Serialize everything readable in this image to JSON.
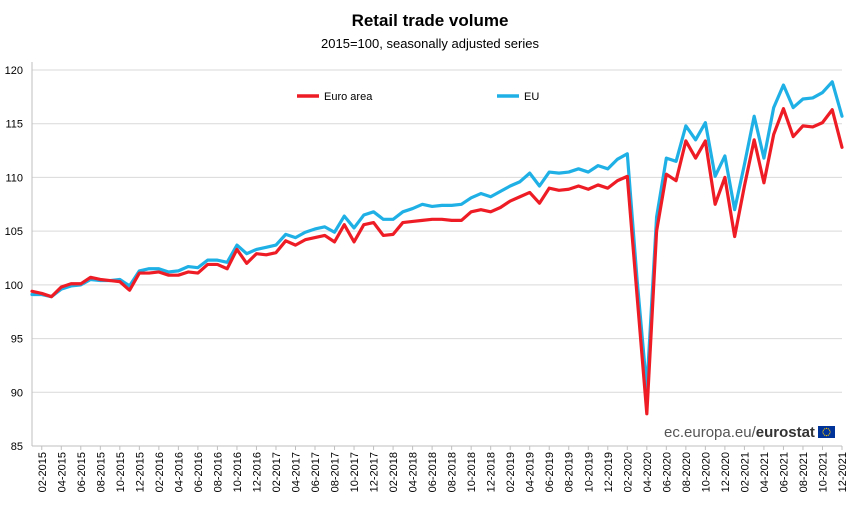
{
  "chart_data": {
    "type": "line",
    "title": "Retail trade volume",
    "subtitle": "2015=100, seasonally adjusted series",
    "xlabel": "",
    "ylabel": "",
    "ylim": [
      85,
      120
    ],
    "yticks": [
      85,
      90,
      95,
      100,
      105,
      110,
      115,
      120
    ],
    "grid": true,
    "legend_position": "top-center",
    "x": [
      "01-2015",
      "02-2015",
      "03-2015",
      "04-2015",
      "05-2015",
      "06-2015",
      "07-2015",
      "08-2015",
      "09-2015",
      "10-2015",
      "11-2015",
      "12-2015",
      "01-2016",
      "02-2016",
      "03-2016",
      "04-2016",
      "05-2016",
      "06-2016",
      "07-2016",
      "08-2016",
      "09-2016",
      "10-2016",
      "11-2016",
      "12-2016",
      "01-2017",
      "02-2017",
      "03-2017",
      "04-2017",
      "05-2017",
      "06-2017",
      "07-2017",
      "08-2017",
      "09-2017",
      "10-2017",
      "11-2017",
      "12-2017",
      "01-2018",
      "02-2018",
      "03-2018",
      "04-2018",
      "05-2018",
      "06-2018",
      "07-2018",
      "08-2018",
      "09-2018",
      "10-2018",
      "11-2018",
      "12-2018",
      "01-2019",
      "02-2019",
      "03-2019",
      "04-2019",
      "05-2019",
      "06-2019",
      "07-2019",
      "08-2019",
      "09-2019",
      "10-2019",
      "11-2019",
      "12-2019",
      "01-2020",
      "02-2020",
      "03-2020",
      "04-2020",
      "05-2020",
      "06-2020",
      "07-2020",
      "08-2020",
      "09-2020",
      "10-2020",
      "11-2020",
      "12-2020",
      "01-2021",
      "02-2021",
      "03-2021",
      "04-2021",
      "05-2021",
      "06-2021",
      "07-2021",
      "08-2021",
      "09-2021",
      "10-2021",
      "11-2021",
      "12-2021"
    ],
    "xtick_labels": [
      "02-2015",
      "04-2015",
      "06-2015",
      "08-2015",
      "10-2015",
      "12-2015",
      "02-2016",
      "04-2016",
      "06-2016",
      "08-2016",
      "10-2016",
      "12-2016",
      "02-2017",
      "04-2017",
      "06-2017",
      "08-2017",
      "10-2017",
      "12-2017",
      "02-2018",
      "04-2018",
      "06-2018",
      "08-2018",
      "10-2018",
      "12-2018",
      "02-2019",
      "04-2019",
      "06-2019",
      "08-2019",
      "10-2019",
      "12-2019",
      "02-2020",
      "04-2020",
      "06-2020",
      "08-2020",
      "10-2020",
      "12-2020",
      "02-2021",
      "04-2021",
      "06-2021",
      "08-2021",
      "10-2021",
      "12-2021"
    ],
    "series": [
      {
        "name": "Euro area",
        "color": "#ee1c25",
        "values": [
          99.4,
          99.2,
          98.9,
          99.8,
          100.1,
          100.1,
          100.7,
          100.5,
          100.4,
          100.3,
          99.5,
          101.1,
          101.1,
          101.2,
          100.9,
          100.9,
          101.2,
          101.1,
          101.9,
          101.9,
          101.5,
          103.3,
          102.0,
          102.9,
          102.8,
          103.0,
          104.1,
          103.7,
          104.2,
          104.4,
          104.6,
          104.0,
          105.6,
          104.0,
          105.6,
          105.8,
          104.6,
          104.7,
          105.8,
          105.9,
          106.0,
          106.1,
          106.1,
          106.0,
          106.0,
          106.8,
          107.0,
          106.8,
          107.2,
          107.8,
          108.2,
          108.6,
          107.6,
          109.0,
          108.8,
          108.9,
          109.2,
          108.9,
          109.3,
          109.0,
          109.7,
          110.1,
          99.0,
          88.0,
          105.0,
          110.3,
          109.7,
          113.4,
          111.8,
          113.4,
          107.5,
          110.0,
          104.5,
          109.2,
          113.5,
          109.5,
          114.0,
          116.4,
          113.8,
          114.8,
          114.7,
          115.1,
          116.3,
          112.8
        ]
      },
      {
        "name": "EU",
        "color": "#1fb0e6",
        "values": [
          99.1,
          99.1,
          98.9,
          99.6,
          99.9,
          100.0,
          100.5,
          100.4,
          100.4,
          100.5,
          99.9,
          101.3,
          101.5,
          101.5,
          101.2,
          101.3,
          101.7,
          101.6,
          102.3,
          102.3,
          102.1,
          103.7,
          102.9,
          103.3,
          103.5,
          103.7,
          104.7,
          104.4,
          104.9,
          105.2,
          105.4,
          104.9,
          106.4,
          105.3,
          106.5,
          106.8,
          106.1,
          106.1,
          106.8,
          107.1,
          107.5,
          107.3,
          107.4,
          107.4,
          107.5,
          108.1,
          108.5,
          108.2,
          108.7,
          109.2,
          109.6,
          110.4,
          109.2,
          110.5,
          110.4,
          110.5,
          110.8,
          110.5,
          111.1,
          110.8,
          111.7,
          112.2,
          100.5,
          90.3,
          106.3,
          111.8,
          111.5,
          114.8,
          113.5,
          115.1,
          110.1,
          112.0,
          107.0,
          111.2,
          115.7,
          111.8,
          116.5,
          118.6,
          116.5,
          117.3,
          117.4,
          117.9,
          118.9,
          115.7
        ]
      }
    ]
  },
  "source": {
    "prefix": "ec.europa.eu/",
    "brand": "eurostat",
    "flag_color": "#003399",
    "stars_color": "#ffcc00"
  }
}
